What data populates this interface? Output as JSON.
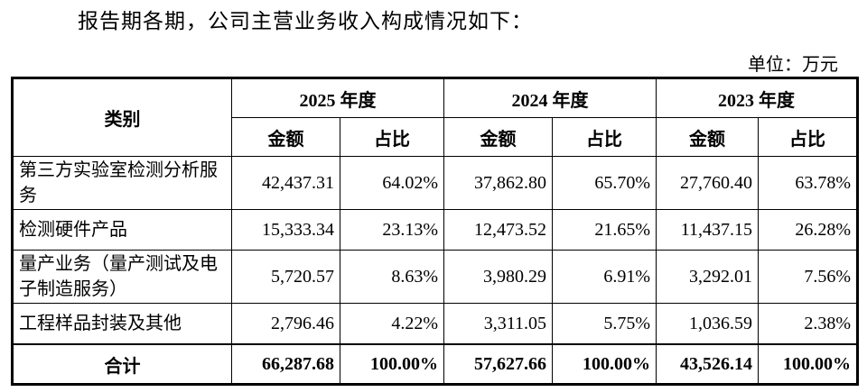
{
  "header": {
    "intro": "报告期各期，公司主营业务收入构成情况如下：",
    "unit": "单位：万元"
  },
  "table": {
    "category_header": "类别",
    "years": [
      {
        "year": "2025 年度",
        "amount": "金额",
        "share": "占比"
      },
      {
        "year": "2024 年度",
        "amount": "金额",
        "share": "占比"
      },
      {
        "year": "2023 年度",
        "amount": "金额",
        "share": "占比"
      }
    ],
    "rows": [
      [
        "第三方实验室检测分析服务",
        "42,437.31",
        "64.02%",
        "37,862.80",
        "65.70%",
        "27,760.40",
        "63.78%"
      ],
      [
        "检测硬件产品",
        "15,333.34",
        "23.13%",
        "12,473.52",
        "21.65%",
        "11,437.15",
        "26.28%"
      ],
      [
        "量产业务（量产测试及电子制造服务）",
        "5,720.57",
        "8.63%",
        "3,980.29",
        "6.91%",
        "3,292.01",
        "7.56%"
      ],
      [
        "工程样品封装及其他",
        "2,796.46",
        "4.22%",
        "3,311.05",
        "5.75%",
        "1,036.59",
        "2.38%"
      ]
    ],
    "total": [
      "合计",
      "66,287.68",
      "100.00%",
      "57,627.66",
      "100.00%",
      "43,526.14",
      "100.00%"
    ]
  }
}
